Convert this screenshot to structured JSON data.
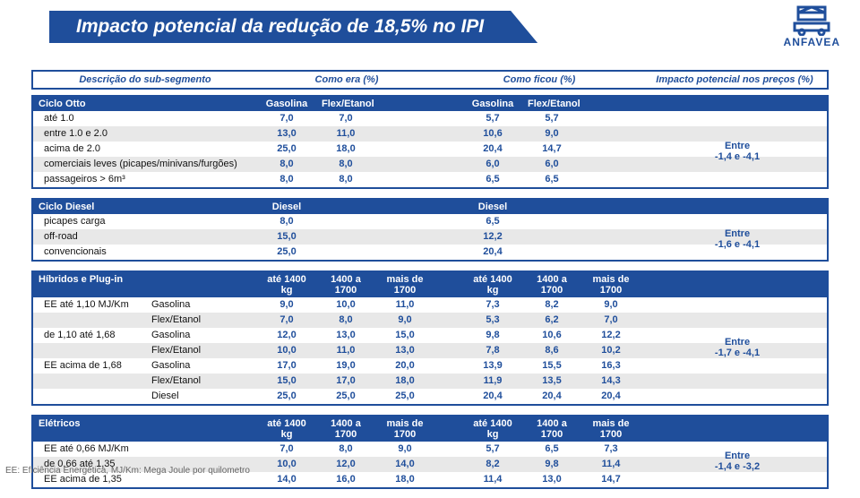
{
  "title": "Impacto potencial da redução de 18,5% no IPI",
  "logo_text": "ANFAVEA",
  "footnote": "EE: Eficiência Energética,  MJ/Km: Mega Joule por quilometro",
  "header": {
    "desc": "Descrição do sub-segmento",
    "era": "Como era (%)",
    "ficou": "Como ficou (%)",
    "impact": "Impacto potencial nos preços (%)"
  },
  "cicloOtto": {
    "title": "Ciclo Otto",
    "cols_era": [
      "Gasolina",
      "Flex/Etanol"
    ],
    "cols_ficou": [
      "Gasolina",
      "Flex/Etanol"
    ],
    "impact_line1": "Entre",
    "impact_line2": "-1,4 e -4,1",
    "rows": [
      {
        "desc": "até 1.0",
        "e": [
          "7,0",
          "7,0"
        ],
        "f": [
          "5,7",
          "5,7"
        ]
      },
      {
        "desc": "entre 1.0 e 2.0",
        "e": [
          "13,0",
          "11,0"
        ],
        "f": [
          "10,6",
          "9,0"
        ]
      },
      {
        "desc": "acima de 2.0",
        "e": [
          "25,0",
          "18,0"
        ],
        "f": [
          "20,4",
          "14,7"
        ]
      },
      {
        "desc": "comerciais leves (picapes/minivans/furgões)",
        "e": [
          "8,0",
          "8,0"
        ],
        "f": [
          "6,0",
          "6,0"
        ]
      },
      {
        "desc": "passageiros > 6m³",
        "e": [
          "8,0",
          "8,0"
        ],
        "f": [
          "6,5",
          "6,5"
        ]
      }
    ]
  },
  "cicloDiesel": {
    "title": "Ciclo Diesel",
    "cols_era": [
      "Diesel"
    ],
    "cols_ficou": [
      "Diesel"
    ],
    "impact_line1": "Entre",
    "impact_line2": "-1,6 e -4,1",
    "rows": [
      {
        "desc": "picapes carga",
        "e": [
          "8,0"
        ],
        "f": [
          "6,5"
        ]
      },
      {
        "desc": "off-road",
        "e": [
          "15,0"
        ],
        "f": [
          "12,2"
        ]
      },
      {
        "desc": "convencionais",
        "e": [
          "25,0"
        ],
        "f": [
          "20,4"
        ]
      }
    ]
  },
  "hibridos": {
    "title": "Híbridos e Plug-in",
    "cols_era": [
      "até 1400 kg",
      "1400 a 1700",
      "mais de 1700"
    ],
    "cols_ficou": [
      "até 1400 kg",
      "1400 a 1700",
      "mais de 1700"
    ],
    "impact_line1": "Entre",
    "impact_line2": "-1,7 e -4,1",
    "rows": [
      {
        "desc": "EE até 1,10 MJ/Km",
        "sub": "Gasolina",
        "e": [
          "9,0",
          "10,0",
          "11,0"
        ],
        "f": [
          "7,3",
          "8,2",
          "9,0"
        ]
      },
      {
        "desc": "",
        "sub": "Flex/Etanol",
        "e": [
          "7,0",
          "8,0",
          "9,0"
        ],
        "f": [
          "5,3",
          "6,2",
          "7,0"
        ]
      },
      {
        "desc": "de 1,10 até 1,68",
        "sub": "Gasolina",
        "e": [
          "12,0",
          "13,0",
          "15,0"
        ],
        "f": [
          "9,8",
          "10,6",
          "12,2"
        ]
      },
      {
        "desc": "",
        "sub": "Flex/Etanol",
        "e": [
          "10,0",
          "11,0",
          "13,0"
        ],
        "f": [
          "7,8",
          "8,6",
          "10,2"
        ]
      },
      {
        "desc": "EE acima de 1,68",
        "sub": "Gasolina",
        "e": [
          "17,0",
          "19,0",
          "20,0"
        ],
        "f": [
          "13,9",
          "15,5",
          "16,3"
        ]
      },
      {
        "desc": "",
        "sub": "Flex/Etanol",
        "e": [
          "15,0",
          "17,0",
          "18,0"
        ],
        "f": [
          "11,9",
          "13,5",
          "14,3"
        ]
      },
      {
        "desc": "",
        "sub": "Diesel",
        "e": [
          "25,0",
          "25,0",
          "25,0"
        ],
        "f": [
          "20,4",
          "20,4",
          "20,4"
        ]
      }
    ]
  },
  "eletricos": {
    "title": "Elétricos",
    "cols_era": [
      "até 1400 kg",
      "1400 a 1700",
      "mais de 1700"
    ],
    "cols_ficou": [
      "até 1400 kg",
      "1400 a 1700",
      "mais de 1700"
    ],
    "impact_line1": "Entre",
    "impact_line2": "-1,4 e -3,2",
    "rows": [
      {
        "desc": "EE até 0,66 MJ/Km",
        "e": [
          "7,0",
          "8,0",
          "9,0"
        ],
        "f": [
          "5,7",
          "6,5",
          "7,3"
        ]
      },
      {
        "desc": "de 0,66 até 1,35",
        "e": [
          "10,0",
          "12,0",
          "14,0"
        ],
        "f": [
          "8,2",
          "9,8",
          "11,4"
        ]
      },
      {
        "desc": "EE acima de 1,35",
        "e": [
          "14,0",
          "16,0",
          "18,0"
        ],
        "f": [
          "11,4",
          "13,0",
          "14,7"
        ]
      }
    ]
  },
  "colors": {
    "brand": "#1f4e9b",
    "row_alt": "#e8e8e8",
    "row_white": "#ffffff",
    "text": "#111111"
  }
}
